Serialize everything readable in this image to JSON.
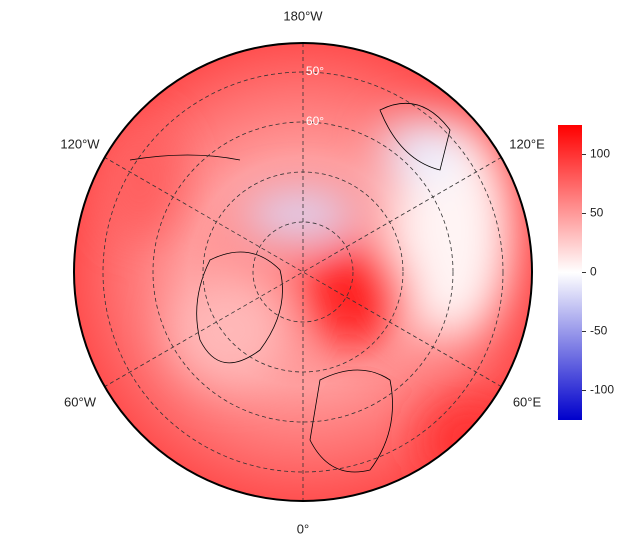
{
  "map": {
    "longitude_labels": [
      "180°W",
      "120°W",
      "120°E",
      "60°W",
      "60°E",
      "0°"
    ],
    "latitude_labels": [
      "50°",
      "60°"
    ]
  },
  "colorbar": {
    "lim": [
      -125,
      125
    ],
    "ticks": [
      100,
      50,
      0,
      -50,
      -100
    ]
  }
}
